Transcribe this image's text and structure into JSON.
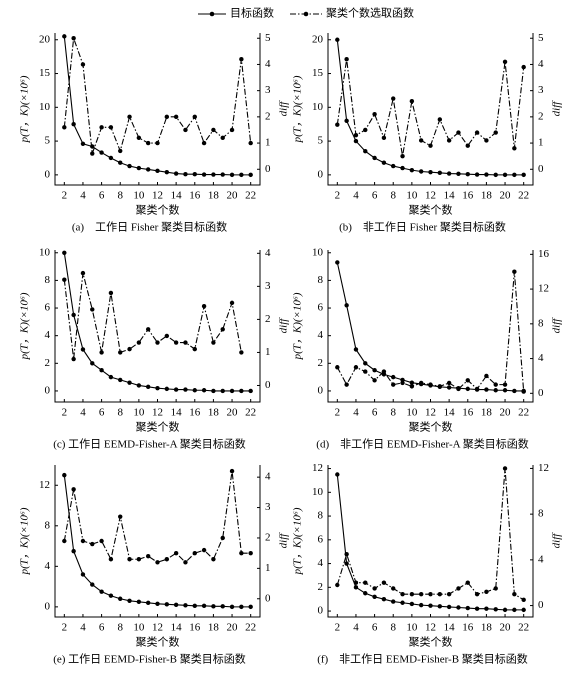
{
  "legend": [
    "目标函数",
    "聚类个数选取函数"
  ],
  "chart_data": [
    {
      "type": "line",
      "caption": "(a)　工作日 Fisher 聚类目标函数",
      "xlabel": "聚类个数",
      "ylabel": "p(T，K)(×10⁶)",
      "y2label": "diff",
      "x": [
        2,
        3,
        4,
        5,
        6,
        7,
        8,
        9,
        10,
        11,
        12,
        13,
        14,
        15,
        16,
        17,
        18,
        19,
        20,
        21,
        22
      ],
      "xlim": [
        1,
        23
      ],
      "xticks": [
        2,
        4,
        6,
        8,
        10,
        12,
        14,
        16,
        18,
        20,
        22
      ],
      "ylim": [
        -1.5,
        21
      ],
      "yticks": [
        0,
        5,
        10,
        15,
        20
      ],
      "y2lim": [
        -0.6,
        5.2
      ],
      "y2ticks": [
        0,
        1,
        2,
        3,
        4,
        5
      ],
      "series": [
        {
          "color": "#000000",
          "values": [
            20.5,
            7.5,
            4.6,
            4.2,
            3.3,
            2.5,
            1.8,
            1.3,
            1.0,
            0.8,
            0.6,
            0.4,
            0.2,
            0.1,
            0.1,
            0.05,
            0.05,
            0.05,
            0,
            0,
            0
          ]
        },
        {
          "color": "#000000",
          "axis": "y2",
          "dash": true,
          "values": [
            1.6,
            5.0,
            4.0,
            0.6,
            1.6,
            1.6,
            0.7,
            2.0,
            1.2,
            1.0,
            1.0,
            2.0,
            2.0,
            1.5,
            2.0,
            1.0,
            1.5,
            1.2,
            1.5,
            4.2,
            1.0
          ]
        }
      ]
    },
    {
      "type": "line",
      "caption": "(b)　非工作日 Fisher 聚类目标函数",
      "xlabel": "聚类个数",
      "ylabel": "p(T，K)(×10⁶)",
      "y2label": "diff",
      "x": [
        2,
        3,
        4,
        5,
        6,
        7,
        8,
        9,
        10,
        11,
        12,
        13,
        14,
        15,
        16,
        17,
        18,
        19,
        20,
        21,
        22
      ],
      "xlim": [
        1,
        23
      ],
      "xticks": [
        2,
        4,
        6,
        8,
        10,
        12,
        14,
        16,
        18,
        20,
        22
      ],
      "ylim": [
        -1.5,
        21
      ],
      "yticks": [
        0,
        5,
        10,
        15,
        20
      ],
      "y2lim": [
        -0.6,
        5.2
      ],
      "y2ticks": [
        0,
        1,
        2,
        3,
        4,
        5
      ],
      "series": [
        {
          "color": "#000000",
          "values": [
            20,
            8,
            5,
            3.5,
            2.5,
            1.8,
            1.3,
            1.0,
            0.7,
            0.5,
            0.4,
            0.3,
            0.2,
            0.15,
            0.1,
            0.05,
            0.05,
            0,
            0,
            0,
            0
          ]
        },
        {
          "color": "#000000",
          "axis": "y2",
          "dash": true,
          "values": [
            1.7,
            4.2,
            1.3,
            1.5,
            2.1,
            1.2,
            2.7,
            0.5,
            2.6,
            1.1,
            0.9,
            1.9,
            1.1,
            1.4,
            0.9,
            1.4,
            1.1,
            1.4,
            4.1,
            0.8,
            3.9
          ]
        }
      ]
    },
    {
      "type": "line",
      "caption": "(c) 工作日 EEMD-Fisher-A 聚类目标函数",
      "xlabel": "聚类个数",
      "ylabel": "p(T，K)(×10⁶)",
      "y2label": "diff",
      "x": [
        2,
        3,
        4,
        5,
        6,
        7,
        8,
        9,
        10,
        11,
        12,
        13,
        14,
        15,
        16,
        17,
        18,
        19,
        20,
        21,
        22
      ],
      "xlim": [
        1,
        23
      ],
      "xticks": [
        2,
        4,
        6,
        8,
        10,
        12,
        14,
        16,
        18,
        20,
        22
      ],
      "ylim": [
        -0.8,
        10.2
      ],
      "yticks": [
        0,
        2,
        4,
        6,
        8,
        10
      ],
      "y2lim": [
        -0.5,
        4.1
      ],
      "y2ticks": [
        0,
        1,
        2,
        3,
        4
      ],
      "series": [
        {
          "color": "#000000",
          "values": [
            10,
            5.5,
            3,
            2,
            1.5,
            1.0,
            0.8,
            0.6,
            0.4,
            0.3,
            0.2,
            0.15,
            0.1,
            0.1,
            0.05,
            0.05,
            0,
            0,
            0,
            0,
            0
          ]
        },
        {
          "color": "#000000",
          "axis": "y2",
          "dash": true,
          "values": [
            3.2,
            0.8,
            3.4,
            2.3,
            1.0,
            2.8,
            1.0,
            1.1,
            1.3,
            1.7,
            1.3,
            1.5,
            1.3,
            1.3,
            1.1,
            2.4,
            1.3,
            1.7,
            2.5,
            1.0,
            null
          ]
        }
      ]
    },
    {
      "type": "line",
      "caption": "(d)　非工作日 EEMD-Fisher-A 聚类目标函数",
      "xlabel": "聚类个数",
      "ylabel": "p(T，K)(×10⁶)",
      "y2label": "diff",
      "x": [
        2,
        3,
        4,
        5,
        6,
        7,
        8,
        9,
        10,
        11,
        12,
        13,
        14,
        15,
        16,
        17,
        18,
        19,
        20,
        21,
        22
      ],
      "xlim": [
        1,
        23
      ],
      "xticks": [
        2,
        4,
        6,
        8,
        10,
        12,
        14,
        16,
        18,
        20,
        22
      ],
      "ylim": [
        -0.8,
        10.2
      ],
      "yticks": [
        0,
        2,
        4,
        6,
        8,
        10
      ],
      "y2lim": [
        -1,
        16.5
      ],
      "y2ticks": [
        0,
        4,
        8,
        12,
        16
      ],
      "series": [
        {
          "color": "#000000",
          "values": [
            9.3,
            6.2,
            3,
            2,
            1.5,
            1.2,
            1.0,
            0.8,
            0.6,
            0.5,
            0.4,
            0.3,
            0.25,
            0.2,
            0.15,
            0.1,
            0.1,
            0.05,
            0.05,
            0,
            0
          ]
        },
        {
          "color": "#000000",
          "axis": "y2",
          "dash": true,
          "values": [
            3,
            1,
            3,
            2.5,
            1.5,
            2.5,
            1,
            1.2,
            0.8,
            1.2,
            1,
            0.8,
            1.2,
            0.5,
            1.5,
            0.5,
            2,
            1,
            1,
            14,
            0.2
          ]
        }
      ]
    },
    {
      "type": "line",
      "caption": "(e) 工作日 EEMD-Fisher-B 聚类目标函数",
      "xlabel": "聚类个数",
      "ylabel": "p(T，K)(×10⁶)",
      "y2label": "diff",
      "x": [
        2,
        3,
        4,
        5,
        6,
        7,
        8,
        9,
        10,
        11,
        12,
        13,
        14,
        15,
        16,
        17,
        18,
        19,
        20,
        21,
        22
      ],
      "xlim": [
        1,
        23
      ],
      "xticks": [
        2,
        4,
        6,
        8,
        10,
        12,
        14,
        16,
        18,
        20,
        22
      ],
      "ylim": [
        -1,
        14
      ],
      "yticks": [
        0,
        4,
        8,
        12
      ],
      "y2lim": [
        -0.6,
        4.4
      ],
      "y2ticks": [
        0,
        1,
        2,
        3,
        4
      ],
      "series": [
        {
          "color": "#000000",
          "values": [
            13,
            5.5,
            3.2,
            2.2,
            1.5,
            1.1,
            0.8,
            0.6,
            0.5,
            0.4,
            0.3,
            0.25,
            0.2,
            0.15,
            0.1,
            0.1,
            0.05,
            0.05,
            0,
            0,
            0
          ]
        },
        {
          "color": "#000000",
          "axis": "y2",
          "dash": true,
          "values": [
            1.9,
            3.6,
            1.9,
            1.8,
            1.9,
            1.3,
            2.7,
            1.3,
            1.3,
            1.4,
            1.2,
            1.3,
            1.5,
            1.2,
            1.5,
            1.6,
            1.3,
            2.0,
            4.2,
            1.5,
            1.5
          ]
        }
      ]
    },
    {
      "type": "line",
      "caption": "(f)　非工作日 EEMD-Fisher-B 聚类目标函数",
      "xlabel": "聚类个数",
      "ylabel": "p(T，K)(×10⁶)",
      "y2label": "diff",
      "x": [
        2,
        3,
        4,
        5,
        6,
        7,
        8,
        9,
        10,
        11,
        12,
        13,
        14,
        15,
        16,
        17,
        18,
        19,
        20,
        21,
        22
      ],
      "xlim": [
        1,
        23
      ],
      "xticks": [
        2,
        4,
        6,
        8,
        10,
        12,
        14,
        16,
        18,
        20,
        22
      ],
      "ylim": [
        -0.5,
        12.3
      ],
      "yticks": [
        0,
        2,
        4,
        6,
        8,
        10,
        12
      ],
      "y2lim": [
        -1,
        12.3
      ],
      "y2ticks": [
        0,
        4,
        8,
        12
      ],
      "series": [
        {
          "color": "#000000",
          "values": [
            11.5,
            4.0,
            2.0,
            1.5,
            1.2,
            1.0,
            0.8,
            0.7,
            0.6,
            0.5,
            0.45,
            0.4,
            0.35,
            0.3,
            0.25,
            0.2,
            0.2,
            0.15,
            0.1,
            0.1,
            0.1
          ]
        },
        {
          "color": "#000000",
          "axis": "y2",
          "dash": true,
          "values": [
            1.8,
            4.5,
            2,
            2,
            1.5,
            2,
            1.5,
            1,
            1,
            1,
            1,
            1,
            1,
            1.5,
            2,
            1,
            1.2,
            1.5,
            12,
            1,
            0.5
          ]
        }
      ]
    }
  ]
}
